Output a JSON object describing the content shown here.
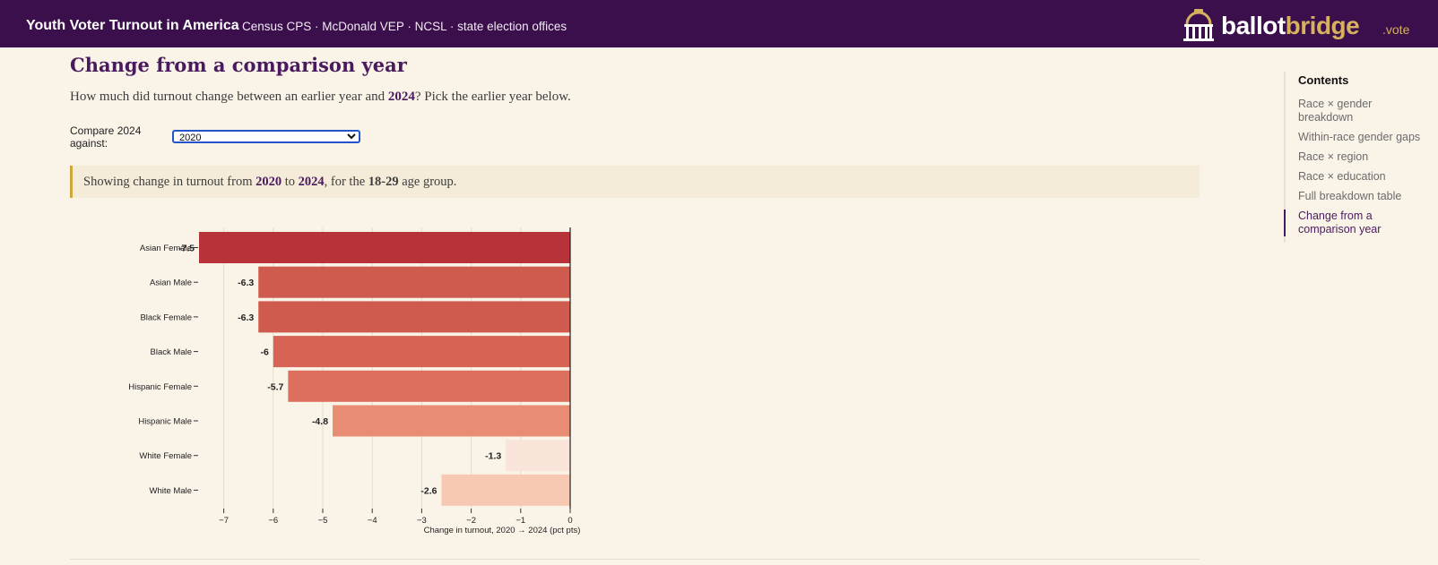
{
  "header": {
    "site_title": "Youth Voter Turnout in America",
    "sources": "Census CPS · McDonald VEP · NCSL · state election offices",
    "logo_word_1": "ballot",
    "logo_word_2": "bridge",
    "logo_tld": ".vote",
    "logo_icon": "capitol-icon"
  },
  "section": {
    "title": "Change from a comparison year",
    "lead_before": "How much did turnout change between an earlier year and ",
    "lead_year": "2024",
    "lead_after": "? Pick the earlier year below.",
    "compare_label": "Compare 2024 against:",
    "selected_year": "2020",
    "notice_p1": "Showing change in turnout from ",
    "notice_from": "2020",
    "notice_p2": " to ",
    "notice_to": "2024",
    "notice_p3": ", for the ",
    "notice_group": "18-29",
    "notice_p4": " age group."
  },
  "chart_data": {
    "type": "bar",
    "orientation": "horizontal",
    "categories": [
      "Asian Female",
      "Asian Male",
      "Black Female",
      "Black Male",
      "Hispanic Female",
      "Hispanic Male",
      "White Female",
      "White Male"
    ],
    "values": [
      -7.5,
      -6.3,
      -6.3,
      -6,
      -5.7,
      -4.8,
      -1.3,
      -2.6
    ],
    "value_labels": [
      "-7.5",
      "-6.3",
      "-6.3",
      "-6",
      "-5.7",
      "-4.8",
      "-1.3",
      "-2.6"
    ],
    "colors": [
      "#b8323a",
      "#cf5a4e",
      "#cf5a4e",
      "#d66354",
      "#dc6f5e",
      "#e88c74",
      "#f8e4d8",
      "#f7c9b2"
    ],
    "xlim": [
      -7.5,
      0
    ],
    "ticks": [
      -7,
      -6,
      -5,
      -4,
      -3,
      -2,
      -1,
      0
    ],
    "tick_labels": [
      "−7",
      "−6",
      "−5",
      "−4",
      "−3",
      "−2",
      "−1",
      "0"
    ],
    "xlabel": "Change in turnout, 2020 → 2024 (pct pts)",
    "grid": true
  },
  "toc": {
    "title": "Contents",
    "items": [
      "Race × gender breakdown",
      "Within-race gender gaps",
      "Race × region",
      "Race × education",
      "Full breakdown table",
      "Change from a comparison year"
    ],
    "active_index": 5
  }
}
